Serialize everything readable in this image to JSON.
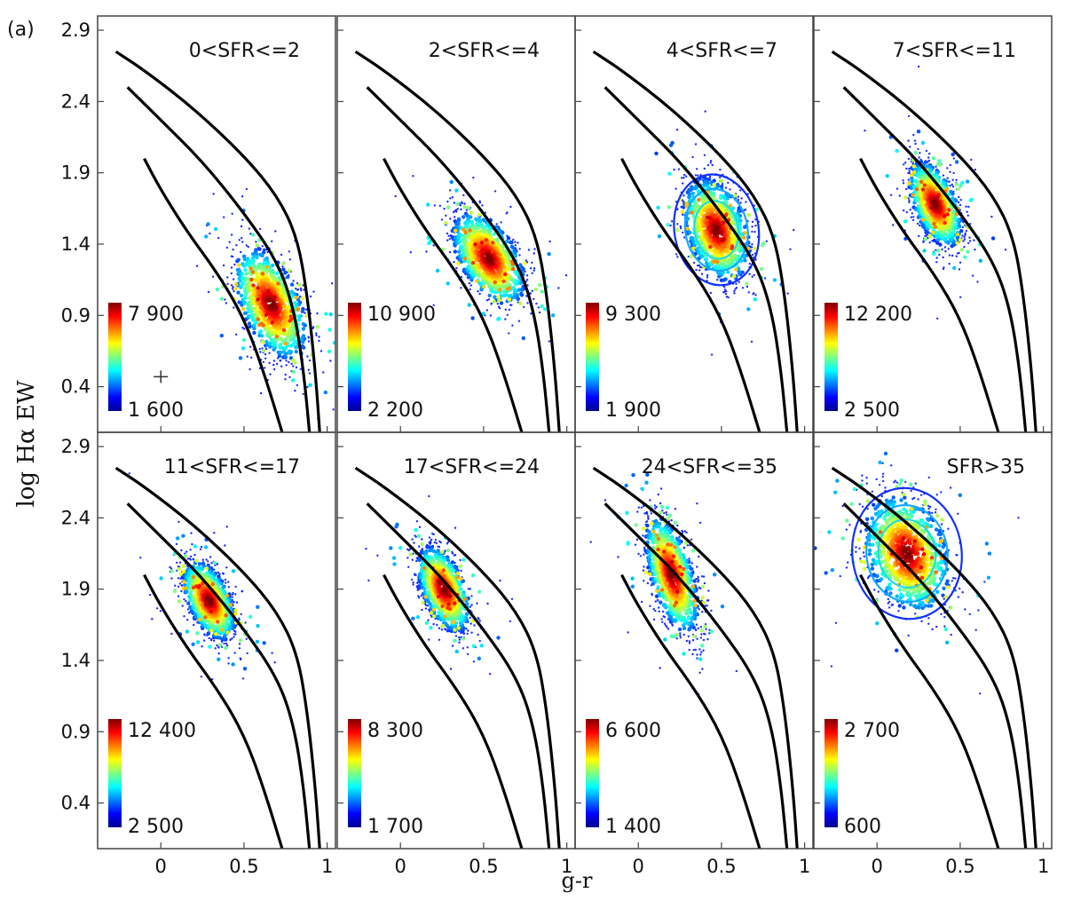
{
  "panel_label": "(a)",
  "ylabel": "log Hα EW",
  "xlabel": "g-r",
  "y_ticks": [
    "2.9",
    "2.4",
    "1.9",
    "1.4",
    "0.9",
    "0.4"
  ],
  "x_ticks": [
    "0",
    "0.5",
    "1"
  ],
  "chart_data": [
    {
      "type": "scatter",
      "title": "0<SFR<=2",
      "colorbar": {
        "max": "7 900",
        "min": "1 600"
      },
      "center": [
        0.66,
        0.98
      ],
      "spread": [
        0.11,
        0.17
      ],
      "tilt": -0.6,
      "contour": false,
      "error_cross": [
        0.0,
        0.47
      ]
    },
    {
      "type": "scatter",
      "title": "2<SFR<=4",
      "colorbar": {
        "max": "10 900",
        "min": "2 200"
      },
      "center": [
        0.53,
        1.3
      ],
      "spread": [
        0.11,
        0.14
      ],
      "tilt": -0.6,
      "contour": false
    },
    {
      "type": "scatter",
      "title": "4<SFR<=7",
      "colorbar": {
        "max": "9 300",
        "min": "1 900"
      },
      "center": [
        0.47,
        1.5
      ],
      "spread": [
        0.1,
        0.17
      ],
      "tilt": -0.4,
      "contour": true
    },
    {
      "type": "scatter",
      "title": "7<SFR<=11",
      "colorbar": {
        "max": "12 200",
        "min": "2 500"
      },
      "center": [
        0.35,
        1.68
      ],
      "spread": [
        0.08,
        0.13
      ],
      "tilt": -0.6,
      "contour": false
    },
    {
      "type": "scatter",
      "title": "11<SFR<=17",
      "colorbar": {
        "max": "12 400",
        "min": "2 500"
      },
      "center": [
        0.29,
        1.82
      ],
      "spread": [
        0.08,
        0.12
      ],
      "tilt": -0.6,
      "contour": false
    },
    {
      "type": "scatter",
      "title": "17<SFR<=24",
      "colorbar": {
        "max": "8 300",
        "min": "1 700"
      },
      "center": [
        0.26,
        1.9
      ],
      "spread": [
        0.08,
        0.13
      ],
      "tilt": -0.6,
      "contour": false
    },
    {
      "type": "scatter",
      "title": "24<SFR<=35",
      "colorbar": {
        "max": "6 600",
        "min": "1 400"
      },
      "center": [
        0.2,
        2.0
      ],
      "spread": [
        0.08,
        0.17
      ],
      "tilt": -0.7,
      "contour": false
    },
    {
      "type": "scatter",
      "title": "SFR>35",
      "colorbar": {
        "max": "2 700",
        "min": "600"
      },
      "center": [
        0.18,
        2.15
      ],
      "spread": [
        0.13,
        0.2
      ],
      "tilt": -0.3,
      "contour": true
    }
  ],
  "curves": {
    "upper": [
      [
        -0.27,
        2.75
      ],
      [
        -0.1,
        2.62
      ],
      [
        0.2,
        2.35
      ],
      [
        0.5,
        2.02
      ],
      [
        0.7,
        1.74
      ],
      [
        0.82,
        1.45
      ],
      [
        0.88,
        1.05
      ],
      [
        0.93,
        0.5
      ],
      [
        0.96,
        0.0
      ]
    ],
    "middle": [
      [
        -0.2,
        2.5
      ],
      [
        0.0,
        2.27
      ],
      [
        0.25,
        1.98
      ],
      [
        0.5,
        1.62
      ],
      [
        0.7,
        1.28
      ],
      [
        0.8,
        0.95
      ],
      [
        0.86,
        0.5
      ],
      [
        0.9,
        0.0
      ]
    ],
    "lower": [
      [
        -0.1,
        2.0
      ],
      [
        0.0,
        1.78
      ],
      [
        0.15,
        1.5
      ],
      [
        0.35,
        1.18
      ],
      [
        0.5,
        0.88
      ],
      [
        0.62,
        0.5
      ],
      [
        0.75,
        0.0
      ]
    ]
  },
  "x_range": [
    -0.38,
    1.05
  ],
  "y_range": [
    0.08,
    3.0
  ]
}
